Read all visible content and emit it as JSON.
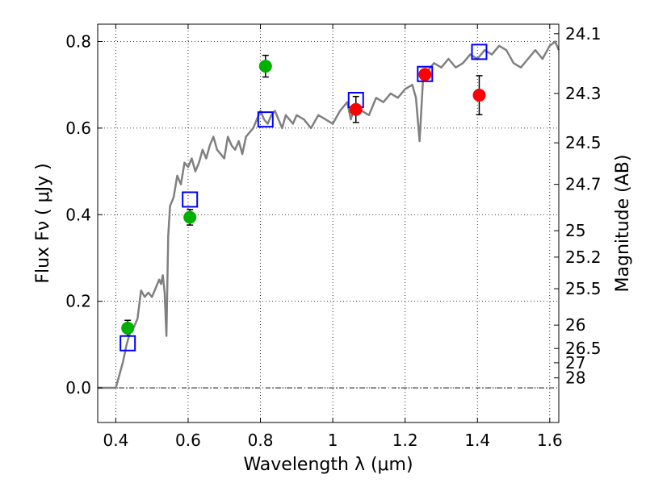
{
  "chart_data": {
    "type": "scatter",
    "xlabel": "Wavelength  λ (μm)",
    "ylabel": "Flux  Fν  ( μJy )",
    "y2label": "Magnitude (AB)",
    "xlim": [
      0.35,
      1.625
    ],
    "ylim": [
      -0.08,
      0.84
    ],
    "grid": true,
    "x_ticks": [
      0.4,
      0.6,
      0.8,
      1.0,
      1.2,
      1.4,
      1.6
    ],
    "x_tick_labels": [
      "0.4",
      "0.6",
      "0.8",
      "1",
      "1.2",
      "1.4",
      "1.6"
    ],
    "y_ticks": [
      0.0,
      0.2,
      0.4,
      0.6,
      0.8
    ],
    "y_tick_labels": [
      "0.0",
      "0.2",
      "0.4",
      "0.6",
      "0.8"
    ],
    "mag_ticks": [
      {
        "flux": 0.818,
        "label": "24.1"
      },
      {
        "flux": 0.68,
        "label": "24.3"
      },
      {
        "flux": 0.566,
        "label": "24.5"
      },
      {
        "flux": 0.47,
        "label": "24.7"
      },
      {
        "flux": 0.363,
        "label": "25"
      },
      {
        "flux": 0.302,
        "label": "25.2"
      },
      {
        "flux": 0.229,
        "label": "25.5"
      },
      {
        "flux": 0.145,
        "label": "26"
      },
      {
        "flux": 0.091,
        "label": "26.5"
      },
      {
        "flux": 0.058,
        "label": "27"
      },
      {
        "flux": 0.023,
        "label": "28"
      }
    ],
    "series": [
      {
        "kind": "model_spectrum",
        "color": "#808080",
        "x": [
          0.35,
          0.38,
          0.4,
          0.41,
          0.42,
          0.43,
          0.44,
          0.45,
          0.46,
          0.47,
          0.48,
          0.49,
          0.5,
          0.51,
          0.52,
          0.525,
          0.53,
          0.535,
          0.54,
          0.545,
          0.55,
          0.56,
          0.57,
          0.58,
          0.59,
          0.6,
          0.61,
          0.62,
          0.63,
          0.64,
          0.65,
          0.66,
          0.67,
          0.68,
          0.69,
          0.7,
          0.71,
          0.72,
          0.73,
          0.74,
          0.75,
          0.76,
          0.77,
          0.78,
          0.79,
          0.8,
          0.81,
          0.82,
          0.83,
          0.84,
          0.85,
          0.86,
          0.87,
          0.88,
          0.89,
          0.9,
          0.92,
          0.94,
          0.96,
          0.98,
          1.0,
          1.02,
          1.04,
          1.05,
          1.06,
          1.08,
          1.1,
          1.12,
          1.14,
          1.16,
          1.18,
          1.2,
          1.22,
          1.23,
          1.24,
          1.25,
          1.26,
          1.27,
          1.28,
          1.3,
          1.32,
          1.34,
          1.36,
          1.38,
          1.4,
          1.42,
          1.44,
          1.46,
          1.48,
          1.5,
          1.52,
          1.54,
          1.56,
          1.58,
          1.6,
          1.615,
          1.625
        ],
        "y": [
          0.0,
          0.0,
          0.0,
          0.03,
          0.06,
          0.1,
          0.13,
          0.14,
          0.16,
          0.225,
          0.21,
          0.22,
          0.21,
          0.23,
          0.25,
          0.24,
          0.26,
          0.22,
          0.12,
          0.35,
          0.42,
          0.44,
          0.49,
          0.47,
          0.52,
          0.51,
          0.53,
          0.5,
          0.52,
          0.55,
          0.53,
          0.56,
          0.58,
          0.55,
          0.54,
          0.53,
          0.58,
          0.56,
          0.55,
          0.57,
          0.54,
          0.58,
          0.59,
          0.6,
          0.62,
          0.64,
          0.62,
          0.61,
          0.63,
          0.64,
          0.62,
          0.6,
          0.63,
          0.62,
          0.61,
          0.63,
          0.62,
          0.6,
          0.63,
          0.62,
          0.61,
          0.64,
          0.66,
          0.62,
          0.65,
          0.64,
          0.63,
          0.67,
          0.66,
          0.68,
          0.67,
          0.69,
          0.7,
          0.67,
          0.57,
          0.72,
          0.73,
          0.74,
          0.75,
          0.74,
          0.76,
          0.74,
          0.75,
          0.77,
          0.76,
          0.78,
          0.77,
          0.79,
          0.78,
          0.75,
          0.74,
          0.76,
          0.78,
          0.76,
          0.79,
          0.8,
          0.78
        ]
      },
      {
        "kind": "model_photometry",
        "marker": "open-square",
        "color": "#0000ff",
        "x": [
          0.433,
          0.605,
          0.814,
          1.064,
          1.255,
          1.405
        ],
        "y": [
          0.103,
          0.435,
          0.62,
          0.665,
          0.725,
          0.776
        ]
      },
      {
        "kind": "observed_green",
        "marker": "filled-circle",
        "color": "#00b000",
        "x": [
          0.433,
          0.605,
          0.814
        ],
        "y": [
          0.138,
          0.394,
          0.743
        ],
        "yerr": [
          0.018,
          0.018,
          0.025
        ]
      },
      {
        "kind": "observed_red",
        "marker": "filled-circle",
        "color": "#ff0000",
        "x": [
          1.064,
          1.255,
          1.405
        ],
        "y": [
          0.643,
          0.724,
          0.676
        ],
        "yerr": [
          0.03,
          0.0,
          0.045
        ]
      }
    ]
  }
}
